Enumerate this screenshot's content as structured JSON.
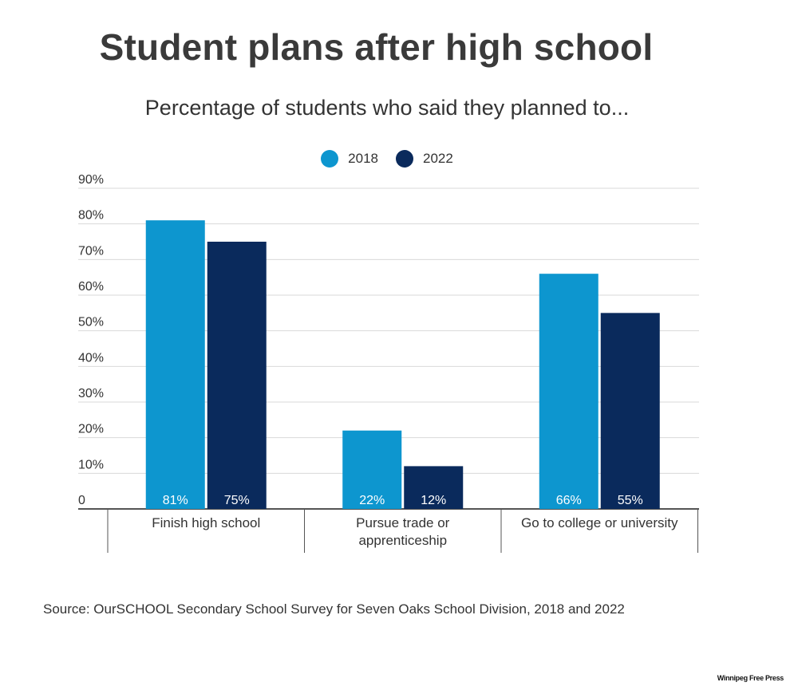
{
  "chart_data": {
    "type": "bar",
    "title": "Student plans after high school",
    "subtitle": "Percentage of students who said they planned to...",
    "categories": [
      [
        "Finish high school"
      ],
      [
        "Pursue trade or",
        "apprenticeship"
      ],
      [
        "Go to college or university"
      ]
    ],
    "series": [
      {
        "name": "2018",
        "values": [
          81,
          22,
          66
        ],
        "labels": [
          "81%",
          "22%",
          "66%"
        ]
      },
      {
        "name": "2022",
        "values": [
          75,
          12,
          55
        ],
        "labels": [
          "75%",
          "12%",
          "55%"
        ]
      }
    ],
    "ylim": [
      0,
      90
    ],
    "yticks": [
      "0",
      "10%",
      "20%",
      "30%",
      "40%",
      "50%",
      "60%",
      "70%",
      "80%",
      "90%"
    ],
    "grid": true,
    "legend_position": "top-center",
    "colors": {
      "2018": "#0d96cf",
      "2022": "#0a2a5c"
    }
  },
  "source": "Source: OurSCHOOL Secondary School Survey for Seven Oaks School Division, 2018 and 2022",
  "credit": "Winnipeg Free Press"
}
